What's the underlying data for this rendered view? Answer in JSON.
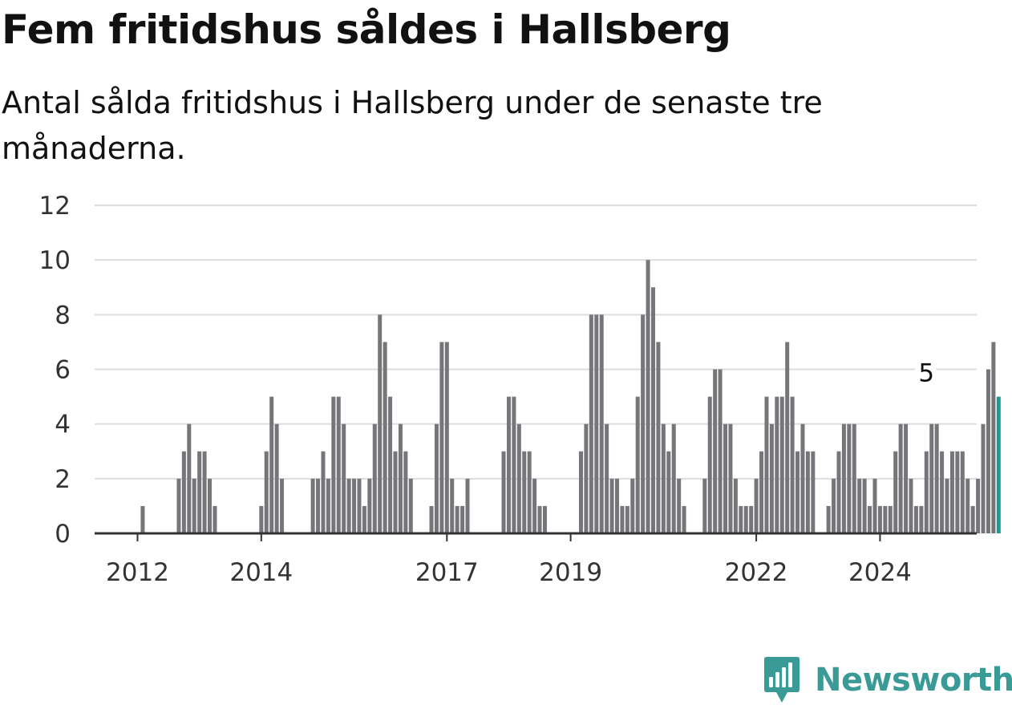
{
  "header": {
    "title": "Fem fritidshus såldes i Hallsberg",
    "subtitle": "Antal sålda fritidshus i Hallsberg under de senaste tre månaderna."
  },
  "brand": {
    "name": "Newsworthy",
    "color": "#3a9a96"
  },
  "colors": {
    "bar": "#75757a",
    "highlight": "#1a9c94",
    "grid": "#dddddd",
    "axis": "#333333"
  },
  "chart_data": {
    "type": "bar",
    "title": "Fem fritidshus såldes i Hallsberg",
    "subtitle": "Antal sålda fritidshus i Hallsberg under de senaste tre månaderna.",
    "xlabel": "",
    "ylabel": "",
    "ylim": [
      0,
      12
    ],
    "yticks": [
      0,
      2,
      4,
      6,
      8,
      10,
      12
    ],
    "x_tick_labels": [
      "2012",
      "2014",
      "2017",
      "2019",
      "2022",
      "2024"
    ],
    "grid": true,
    "x_start": "2011-10",
    "x_end": "2024-10",
    "frequency": "monthly",
    "values": [
      0,
      0,
      0,
      0,
      1,
      0,
      0,
      0,
      0,
      0,
      0,
      2,
      3,
      4,
      2,
      3,
      3,
      2,
      1,
      0,
      0,
      0,
      0,
      0,
      0,
      0,
      0,
      1,
      3,
      5,
      4,
      2,
      0,
      0,
      0,
      0,
      0,
      2,
      2,
      3,
      2,
      5,
      5,
      4,
      2,
      2,
      2,
      1,
      2,
      4,
      8,
      7,
      5,
      3,
      4,
      3,
      2,
      0,
      0,
      0,
      1,
      4,
      7,
      7,
      2,
      1,
      1,
      2,
      0,
      0,
      0,
      0,
      0,
      0,
      3,
      5,
      5,
      4,
      3,
      3,
      2,
      1,
      1,
      0,
      0,
      0,
      0,
      0,
      0,
      3,
      4,
      8,
      8,
      8,
      4,
      2,
      2,
      1,
      1,
      2,
      5,
      8,
      10,
      9,
      7,
      4,
      3,
      4,
      2,
      1,
      0,
      0,
      0,
      2,
      5,
      6,
      6,
      4,
      4,
      2,
      1,
      1,
      1,
      2,
      3,
      5,
      4,
      5,
      5,
      7,
      5,
      3,
      4,
      3,
      3,
      0,
      0,
      1,
      2,
      3,
      4,
      4,
      4,
      2,
      2,
      1,
      2,
      1,
      1,
      1,
      3,
      4,
      4,
      2,
      1,
      1,
      3,
      4,
      4,
      3,
      2,
      3,
      3,
      3,
      2,
      1,
      2,
      4,
      6,
      7,
      5
    ],
    "highlight": {
      "x": "2024-10",
      "value": 5,
      "label": "5"
    }
  }
}
